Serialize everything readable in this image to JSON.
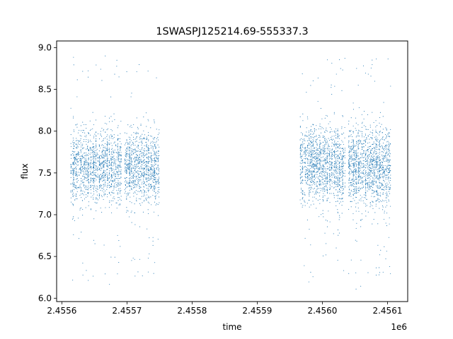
{
  "chart_data": {
    "type": "scatter",
    "title": "1SWASPJ125214.69-555337.3",
    "xlabel": "time",
    "ylabel": "flux",
    "x_offset_label": "1e6",
    "xlim": [
      2455592,
      2456131
    ],
    "ylim": [
      5.96,
      9.08
    ],
    "x_ticks": [
      2455600,
      2455700,
      2455800,
      2455900,
      2456000,
      2456100
    ],
    "x_tick_labels": [
      "2.4556",
      "2.4557",
      "2.4558",
      "2.4559",
      "2.4560",
      "2.4561"
    ],
    "y_ticks": [
      6.0,
      6.5,
      7.0,
      7.5,
      8.0,
      8.5,
      9.0
    ],
    "y_tick_labels": [
      "6.0",
      "6.5",
      "7.0",
      "7.5",
      "8.0",
      "8.5",
      "9.0"
    ],
    "grid": false,
    "series": [
      {
        "color": "#1f77b4",
        "segments": [
          {
            "x_range": [
              2455614,
              2455691
            ],
            "y_core": [
              7.1,
              8.05
            ],
            "y_extent": [
              6.15,
              9.0
            ],
            "nights": 60
          },
          {
            "x_range": [
              2455696,
              2455750
            ],
            "y_core": [
              7.1,
              8.05
            ],
            "y_extent": [
              6.2,
              8.85
            ],
            "nights": 44
          },
          {
            "x_range": [
              2455966,
              2456035
            ],
            "y_core": [
              7.1,
              8.1
            ],
            "y_extent": [
              6.15,
              8.9
            ],
            "nights": 55
          },
          {
            "x_range": [
              2456040,
              2456105
            ],
            "y_core": [
              7.05,
              8.1
            ],
            "y_extent": [
              6.1,
              8.9
            ],
            "nights": 52
          }
        ]
      }
    ]
  }
}
